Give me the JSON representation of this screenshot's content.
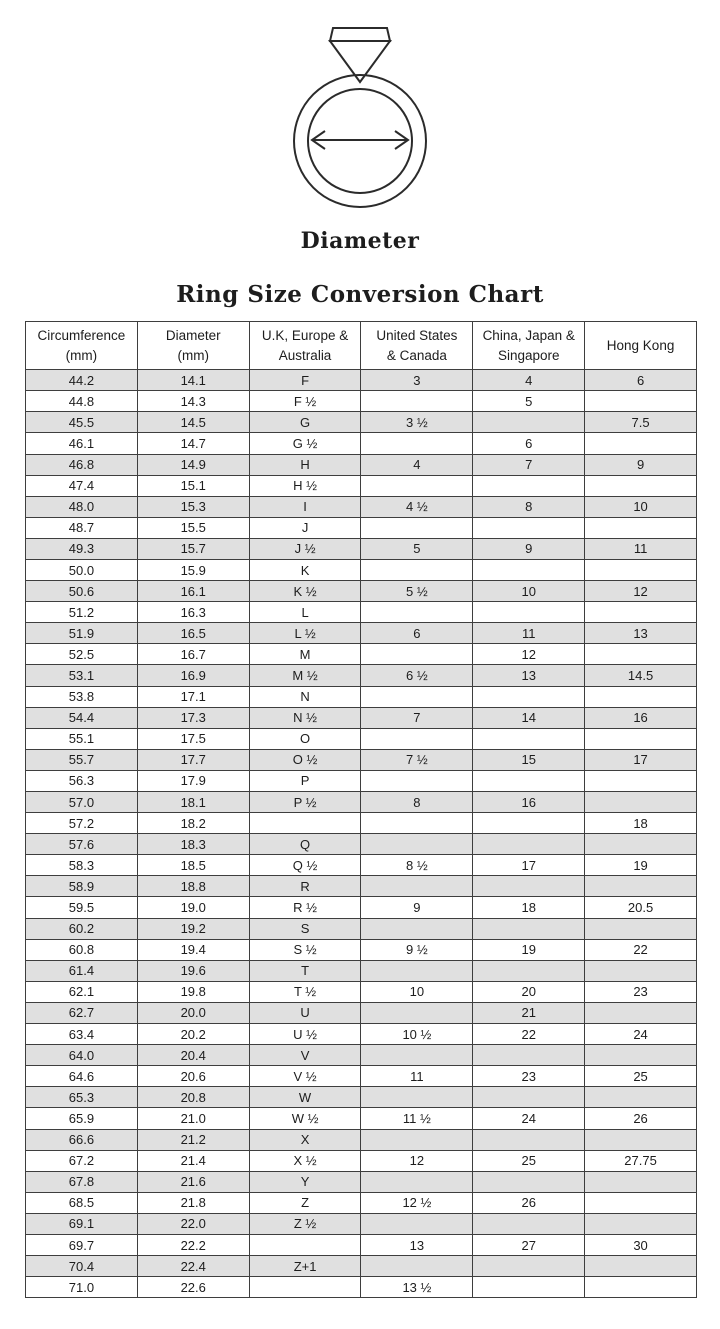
{
  "colors": {
    "background": "#ffffff",
    "text": "#1d1d1d",
    "table_border": "#3e3e3e",
    "row_shade": "#e0e0e0",
    "illustration_line": "#2b2b2b"
  },
  "figure": {
    "label": "Diameter"
  },
  "chart_data": {
    "type": "table",
    "title": "Ring Size Conversion Chart",
    "columns": [
      "Circumference (mm)",
      "Diameter (mm)",
      "U.K, Europe & Australia",
      "United States & Canada",
      "China, Japan & Singapore",
      "Hong Kong"
    ],
    "column_header_lines": [
      [
        "Circumference",
        "(mm)"
      ],
      [
        "Diameter",
        "(mm)"
      ],
      [
        "U.K, Europe &",
        "Australia"
      ],
      [
        "United States",
        "& Canada"
      ],
      [
        "China, Japan &",
        "Singapore"
      ],
      [
        "Hong Kong",
        ""
      ]
    ],
    "rows": [
      [
        "44.2",
        "14.1",
        "F",
        "3",
        "4",
        "6"
      ],
      [
        "44.8",
        "14.3",
        "F ½",
        "",
        "5",
        ""
      ],
      [
        "45.5",
        "14.5",
        "G",
        "3 ½",
        "",
        "7.5"
      ],
      [
        "46.1",
        "14.7",
        "G ½",
        "",
        "6",
        ""
      ],
      [
        "46.8",
        "14.9",
        "H",
        "4",
        "7",
        "9"
      ],
      [
        "47.4",
        "15.1",
        "H ½",
        "",
        "",
        ""
      ],
      [
        "48.0",
        "15.3",
        "I",
        "4 ½",
        "8",
        "10"
      ],
      [
        "48.7",
        "15.5",
        "J",
        "",
        "",
        ""
      ],
      [
        "49.3",
        "15.7",
        "J ½",
        "5",
        "9",
        "11"
      ],
      [
        "50.0",
        "15.9",
        "K",
        "",
        "",
        ""
      ],
      [
        "50.6",
        "16.1",
        "K ½",
        "5 ½",
        "10",
        "12"
      ],
      [
        "51.2",
        "16.3",
        "L",
        "",
        "",
        ""
      ],
      [
        "51.9",
        "16.5",
        "L ½",
        "6",
        "11",
        "13"
      ],
      [
        "52.5",
        "16.7",
        "M",
        "",
        "12",
        ""
      ],
      [
        "53.1",
        "16.9",
        "M ½",
        "6 ½",
        "13",
        "14.5"
      ],
      [
        "53.8",
        "17.1",
        "N",
        "",
        "",
        ""
      ],
      [
        "54.4",
        "17.3",
        "N ½",
        "7",
        "14",
        "16"
      ],
      [
        "55.1",
        "17.5",
        "O",
        "",
        "",
        ""
      ],
      [
        "55.7",
        "17.7",
        "O ½",
        "7 ½",
        "15",
        "17"
      ],
      [
        "56.3",
        "17.9",
        "P",
        "",
        "",
        ""
      ],
      [
        "57.0",
        "18.1",
        "P ½",
        "8",
        "16",
        ""
      ],
      [
        "57.2",
        "18.2",
        "",
        "",
        "",
        "18"
      ],
      [
        "57.6",
        "18.3",
        "Q",
        "",
        "",
        ""
      ],
      [
        "58.3",
        "18.5",
        "Q ½",
        "8 ½",
        "17",
        "19"
      ],
      [
        "58.9",
        "18.8",
        "R",
        "",
        "",
        ""
      ],
      [
        "59.5",
        "19.0",
        "R ½",
        "9",
        "18",
        "20.5"
      ],
      [
        "60.2",
        "19.2",
        "S",
        "",
        "",
        ""
      ],
      [
        "60.8",
        "19.4",
        "S ½",
        "9 ½",
        "19",
        "22"
      ],
      [
        "61.4",
        "19.6",
        "T",
        "",
        "",
        ""
      ],
      [
        "62.1",
        "19.8",
        "T ½",
        "10",
        "20",
        "23"
      ],
      [
        "62.7",
        "20.0",
        "U",
        "",
        "21",
        ""
      ],
      [
        "63.4",
        "20.2",
        "U ½",
        "10 ½",
        "22",
        "24"
      ],
      [
        "64.0",
        "20.4",
        "V",
        "",
        "",
        ""
      ],
      [
        "64.6",
        "20.6",
        "V ½",
        "11",
        "23",
        "25"
      ],
      [
        "65.3",
        "20.8",
        "W",
        "",
        "",
        ""
      ],
      [
        "65.9",
        "21.0",
        "W ½",
        "11 ½",
        "24",
        "26"
      ],
      [
        "66.6",
        "21.2",
        "X",
        "",
        "",
        ""
      ],
      [
        "67.2",
        "21.4",
        "X ½",
        "12",
        "25",
        "27.75"
      ],
      [
        "67.8",
        "21.6",
        "Y",
        "",
        "",
        ""
      ],
      [
        "68.5",
        "21.8",
        "Z",
        "12 ½",
        "26",
        ""
      ],
      [
        "69.1",
        "22.0",
        "Z ½",
        "",
        "",
        ""
      ],
      [
        "69.7",
        "22.2",
        "",
        "13",
        "27",
        "30"
      ],
      [
        "70.4",
        "22.4",
        "Z+1",
        "",
        "",
        ""
      ],
      [
        "71.0",
        "22.6",
        "",
        "13 ½",
        "",
        ""
      ]
    ]
  }
}
